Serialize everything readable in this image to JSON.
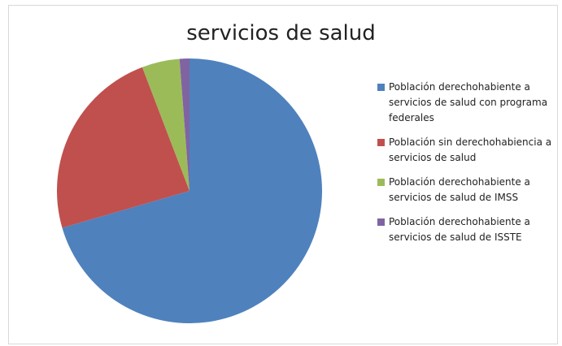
{
  "chart_data": {
    "type": "pie",
    "title": "servicios de salud",
    "categories": [
      "Población derechohabiente a servicios de salud con programa federales",
      "Población sin derechohabiencia  a servicios de salud",
      "Población derechohabiente a servicios de salud de IMSS",
      "Población derechohabiente a servicios de salud de ISSTE"
    ],
    "values": [
      70.5,
      23.7,
      4.6,
      1.2
    ],
    "colors": [
      "#4f81bd",
      "#c0504d",
      "#9bbb59",
      "#8064a2"
    ],
    "legend": "right"
  }
}
